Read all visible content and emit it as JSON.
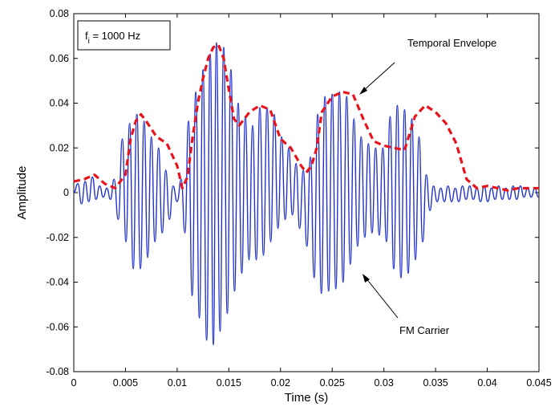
{
  "chart_data": {
    "type": "line",
    "title": "",
    "xlabel": "Time (s)",
    "ylabel": "Amplitude",
    "xlim": [
      0,
      0.045
    ],
    "ylim": [
      -0.08,
      0.08
    ],
    "xticks": [
      0,
      0.005,
      0.01,
      0.015,
      0.02,
      0.025,
      0.03,
      0.035,
      0.04,
      0.045
    ],
    "xtick_labels": [
      "0",
      "0.005",
      "0.01",
      "0.015",
      "0.02",
      "0.025",
      "0.03",
      "0.035",
      "0.04",
      "0.045"
    ],
    "yticks": [
      -0.08,
      -0.06,
      -0.04,
      -0.02,
      0,
      0.02,
      0.04,
      0.06,
      0.08
    ],
    "ytick_labels": [
      "-0.08",
      "-0.06",
      "-0.04",
      "-0.02",
      "0",
      "0.02",
      "0.04",
      "0.06",
      "0.08"
    ],
    "grid": false,
    "legend_box": {
      "text_main": "f",
      "text_sub": "i",
      "text_rest": " = 1000 Hz",
      "placement": "top-left"
    },
    "annotations": [
      {
        "text": "Temporal Envelope",
        "points_to": [
          0.0263,
          0.044
        ]
      },
      {
        "text": "FM Carrier",
        "points_to": [
          0.0262,
          -0.038
        ]
      }
    ],
    "series": [
      {
        "role": "envelope",
        "style": "dashed",
        "color": "#e8141c",
        "x": [
          0,
          0.001,
          0.002,
          0.003,
          0.004,
          0.005,
          0.0055,
          0.006,
          0.0065,
          0.007,
          0.008,
          0.009,
          0.01,
          0.0105,
          0.011,
          0.0115,
          0.012,
          0.0125,
          0.013,
          0.0135,
          0.014,
          0.0145,
          0.015,
          0.0155,
          0.016,
          0.017,
          0.018,
          0.019,
          0.02,
          0.021,
          0.022,
          0.0225,
          0.023,
          0.0235,
          0.024,
          0.025,
          0.026,
          0.027,
          0.028,
          0.029,
          0.03,
          0.031,
          0.032,
          0.033,
          0.034,
          0.035,
          0.036,
          0.037,
          0.038,
          0.039,
          0.04,
          0.041,
          0.042,
          0.043,
          0.044,
          0.045
        ],
        "y": [
          0.005,
          0.006,
          0.008,
          0.004,
          0.002,
          0.008,
          0.024,
          0.032,
          0.035,
          0.032,
          0.025,
          0.022,
          0.012,
          0.002,
          0.007,
          0.025,
          0.04,
          0.051,
          0.06,
          0.065,
          0.066,
          0.06,
          0.046,
          0.033,
          0.03,
          0.036,
          0.039,
          0.037,
          0.024,
          0.02,
          0.012,
          0.009,
          0.012,
          0.02,
          0.036,
          0.043,
          0.045,
          0.044,
          0.033,
          0.023,
          0.021,
          0.02,
          0.019,
          0.034,
          0.039,
          0.036,
          0.031,
          0.022,
          0.006,
          0.002,
          0.003,
          0.002,
          0.001,
          0.002,
          0.002,
          0.002
        ]
      },
      {
        "role": "carrier",
        "style": "solid",
        "color": "#2233cc",
        "peak_times": [
          0.0004,
          0.0011,
          0.0018,
          0.0025,
          0.0032,
          0.0039,
          0.0047,
          0.0054,
          0.0061,
          0.0068,
          0.0075,
          0.0082,
          0.0089,
          0.0096,
          0.0104,
          0.0111,
          0.0118,
          0.0125,
          0.0132,
          0.0138,
          0.0145,
          0.0152,
          0.0159,
          0.0166,
          0.0173,
          0.018,
          0.0187,
          0.0194,
          0.0201,
          0.0208,
          0.0215,
          0.0222,
          0.0229,
          0.0236,
          0.0243,
          0.025,
          0.0257,
          0.0264,
          0.0271,
          0.0278,
          0.0285,
          0.0292,
          0.0299,
          0.0306,
          0.0313,
          0.032,
          0.0327,
          0.0334,
          0.0341,
          0.0348,
          0.0355,
          0.0362,
          0.0369,
          0.0376,
          0.0383,
          0.039,
          0.0397,
          0.0404,
          0.0411,
          0.0418,
          0.0425,
          0.0432,
          0.0439,
          0.0446
        ],
        "peak_values": [
          0.004,
          0.005,
          0.007,
          0.003,
          0.002,
          0.006,
          0.024,
          0.031,
          0.035,
          0.032,
          0.025,
          0.02,
          0.01,
          0.003,
          0.006,
          0.032,
          0.045,
          0.055,
          0.062,
          0.067,
          0.065,
          0.055,
          0.04,
          0.034,
          0.03,
          0.038,
          0.038,
          0.035,
          0.025,
          0.02,
          0.013,
          0.01,
          0.016,
          0.035,
          0.043,
          0.044,
          0.045,
          0.043,
          0.033,
          0.025,
          0.022,
          0.02,
          0.02,
          0.034,
          0.039,
          0.037,
          0.033,
          0.025,
          0.008,
          0.003,
          0.002,
          0.003,
          0.002,
          0.003,
          0.003,
          0.002,
          0.003,
          0.002,
          0.003,
          0.002,
          0.003,
          0.003,
          0.002,
          0.002
        ],
        "trough_values": [
          -0.005,
          -0.004,
          -0.003,
          -0.002,
          -0.003,
          -0.012,
          -0.022,
          -0.034,
          -0.034,
          -0.029,
          -0.022,
          -0.018,
          -0.012,
          -0.004,
          -0.018,
          -0.046,
          -0.056,
          -0.066,
          -0.068,
          -0.062,
          -0.054,
          -0.044,
          -0.036,
          -0.03,
          -0.03,
          -0.028,
          -0.022,
          -0.016,
          -0.012,
          -0.01,
          -0.016,
          -0.024,
          -0.038,
          -0.045,
          -0.044,
          -0.043,
          -0.04,
          -0.032,
          -0.024,
          -0.02,
          -0.018,
          -0.019,
          -0.022,
          -0.034,
          -0.038,
          -0.036,
          -0.03,
          -0.022,
          -0.008,
          -0.004,
          -0.004,
          -0.004,
          -0.004,
          -0.003,
          -0.003,
          -0.004,
          -0.004,
          -0.003,
          -0.003,
          -0.003,
          -0.003,
          -0.002,
          -0.002,
          -0.002
        ]
      }
    ]
  }
}
